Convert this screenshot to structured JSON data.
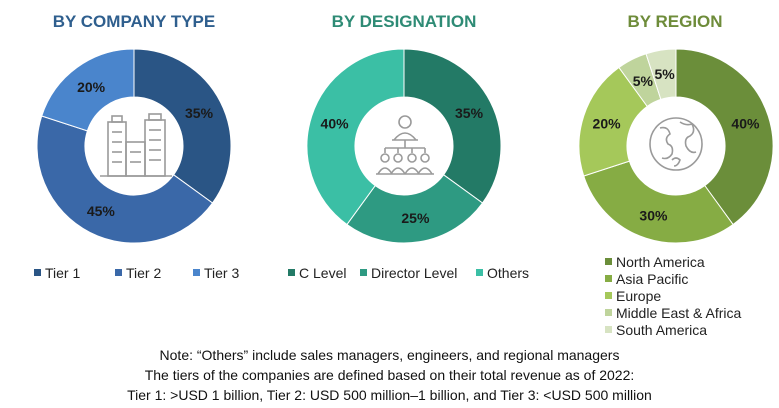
{
  "chart_data": [
    {
      "type": "pie",
      "variant": "donut",
      "title": "BY COMPANY TYPE",
      "title_color": "#2F5F8E",
      "icon": "buildings-icon",
      "legend_position": "bottom",
      "slices": [
        {
          "name": "Tier 1",
          "value": 35,
          "label": "35%",
          "color": "#2A5585"
        },
        {
          "name": "Tier 2",
          "value": 45,
          "label": "45%",
          "color": "#3A68A8"
        },
        {
          "name": "Tier 3",
          "value": 20,
          "label": "20%",
          "color": "#4A85CC"
        }
      ]
    },
    {
      "type": "pie",
      "variant": "donut",
      "title": "BY DESIGNATION",
      "title_color": "#2E8B75",
      "icon": "hierarchy-people-icon",
      "legend_position": "bottom",
      "slices": [
        {
          "name": "C Level",
          "value": 35,
          "label": "35%",
          "color": "#237A66"
        },
        {
          "name": "Director Level",
          "value": 25,
          "label": "25%",
          "color": "#2E9A82"
        },
        {
          "name": "Others",
          "value": 40,
          "label": "40%",
          "color": "#3BBFA5"
        }
      ]
    },
    {
      "type": "pie",
      "variant": "donut",
      "title": "BY REGION",
      "title_color": "#6E8C3A",
      "icon": "globe-icon",
      "legend_position": "bottom",
      "slices": [
        {
          "name": "North America",
          "value": 40,
          "label": "40%",
          "color": "#6B8E3A"
        },
        {
          "name": "Asia Pacific",
          "value": 30,
          "label": "30%",
          "color": "#86AC44"
        },
        {
          "name": "Europe",
          "value": 20,
          "label": "20%",
          "color": "#A5C85A"
        },
        {
          "name": "Middle East & Africa",
          "value": 5,
          "label": "5%",
          "color": "#BFD49C"
        },
        {
          "name": "South America",
          "value": 5,
          "label": "5%",
          "color": "#D7E3C2"
        }
      ]
    }
  ],
  "notes": [
    "Note: “Others” include sales managers, engineers, and regional managers",
    "The tiers of the companies are defined based on their total revenue as of 2022:",
    "Tier 1: >USD 1 billion, Tier 2: USD 500 million–1 billion, and Tier 3: <USD 500 million"
  ]
}
